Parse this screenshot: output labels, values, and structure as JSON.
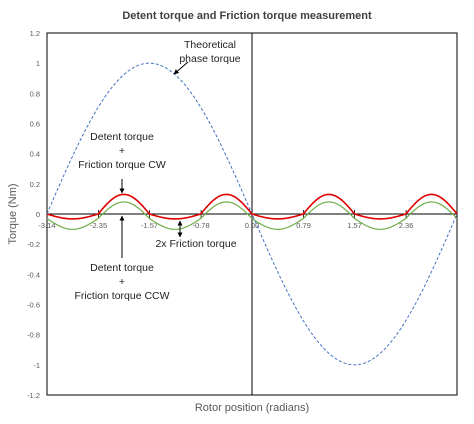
{
  "chart_data": {
    "type": "line",
    "title": "Detent torque and Friction torque measurement",
    "xlabel": "Rotor position (radians)",
    "ylabel": "Torque (Nm)",
    "xlim": [
      -3.14,
      3.14
    ],
    "ylim": [
      -1.2,
      1.2
    ],
    "y_ticks": [
      "1.2",
      "1",
      "0.8",
      "0.6",
      "0.4",
      "0.2",
      "0",
      "-0.2",
      "-0.4",
      "-0.6",
      "-0.8",
      "-1",
      "-1.2"
    ],
    "x_tick_labels": [
      {
        "x": -3.14,
        "label": "-3.14"
      },
      {
        "x": -2.35,
        "label": "-2.35"
      },
      {
        "x": -1.57,
        "label": "-1.57"
      },
      {
        "x": -0.78,
        "label": "-0.78"
      },
      {
        "x": 0.0,
        "label": "0.00"
      },
      {
        "x": 0.79,
        "label": "0.79"
      },
      {
        "x": 1.57,
        "label": "1.57"
      },
      {
        "x": 2.36,
        "label": "2.36"
      }
    ],
    "grid": false,
    "legend": "none",
    "series": [
      {
        "style": "dashed",
        "color": "#4472c4",
        "function": "-sin(x)",
        "amplitude": 1.0
      },
      {
        "style": "solid",
        "color": "#e00000",
        "function": "detent + friction CW",
        "amplitude": 0.13,
        "period_rad": 1.5708,
        "offset": 0.0
      },
      {
        "style": "solid",
        "color": "#70ad47",
        "function": "detent + friction CCW",
        "amplitude": 0.11,
        "period_rad": 1.5708,
        "offset": -0.03
      }
    ],
    "annotations": {
      "theoretical": "Theoretical\nphase torque",
      "cw": "Detent torque\n+\nFriction torque CW",
      "friction2x": "2x Friction torque",
      "ccw": "Detent torque\n+\nFriction torque CCW"
    }
  }
}
